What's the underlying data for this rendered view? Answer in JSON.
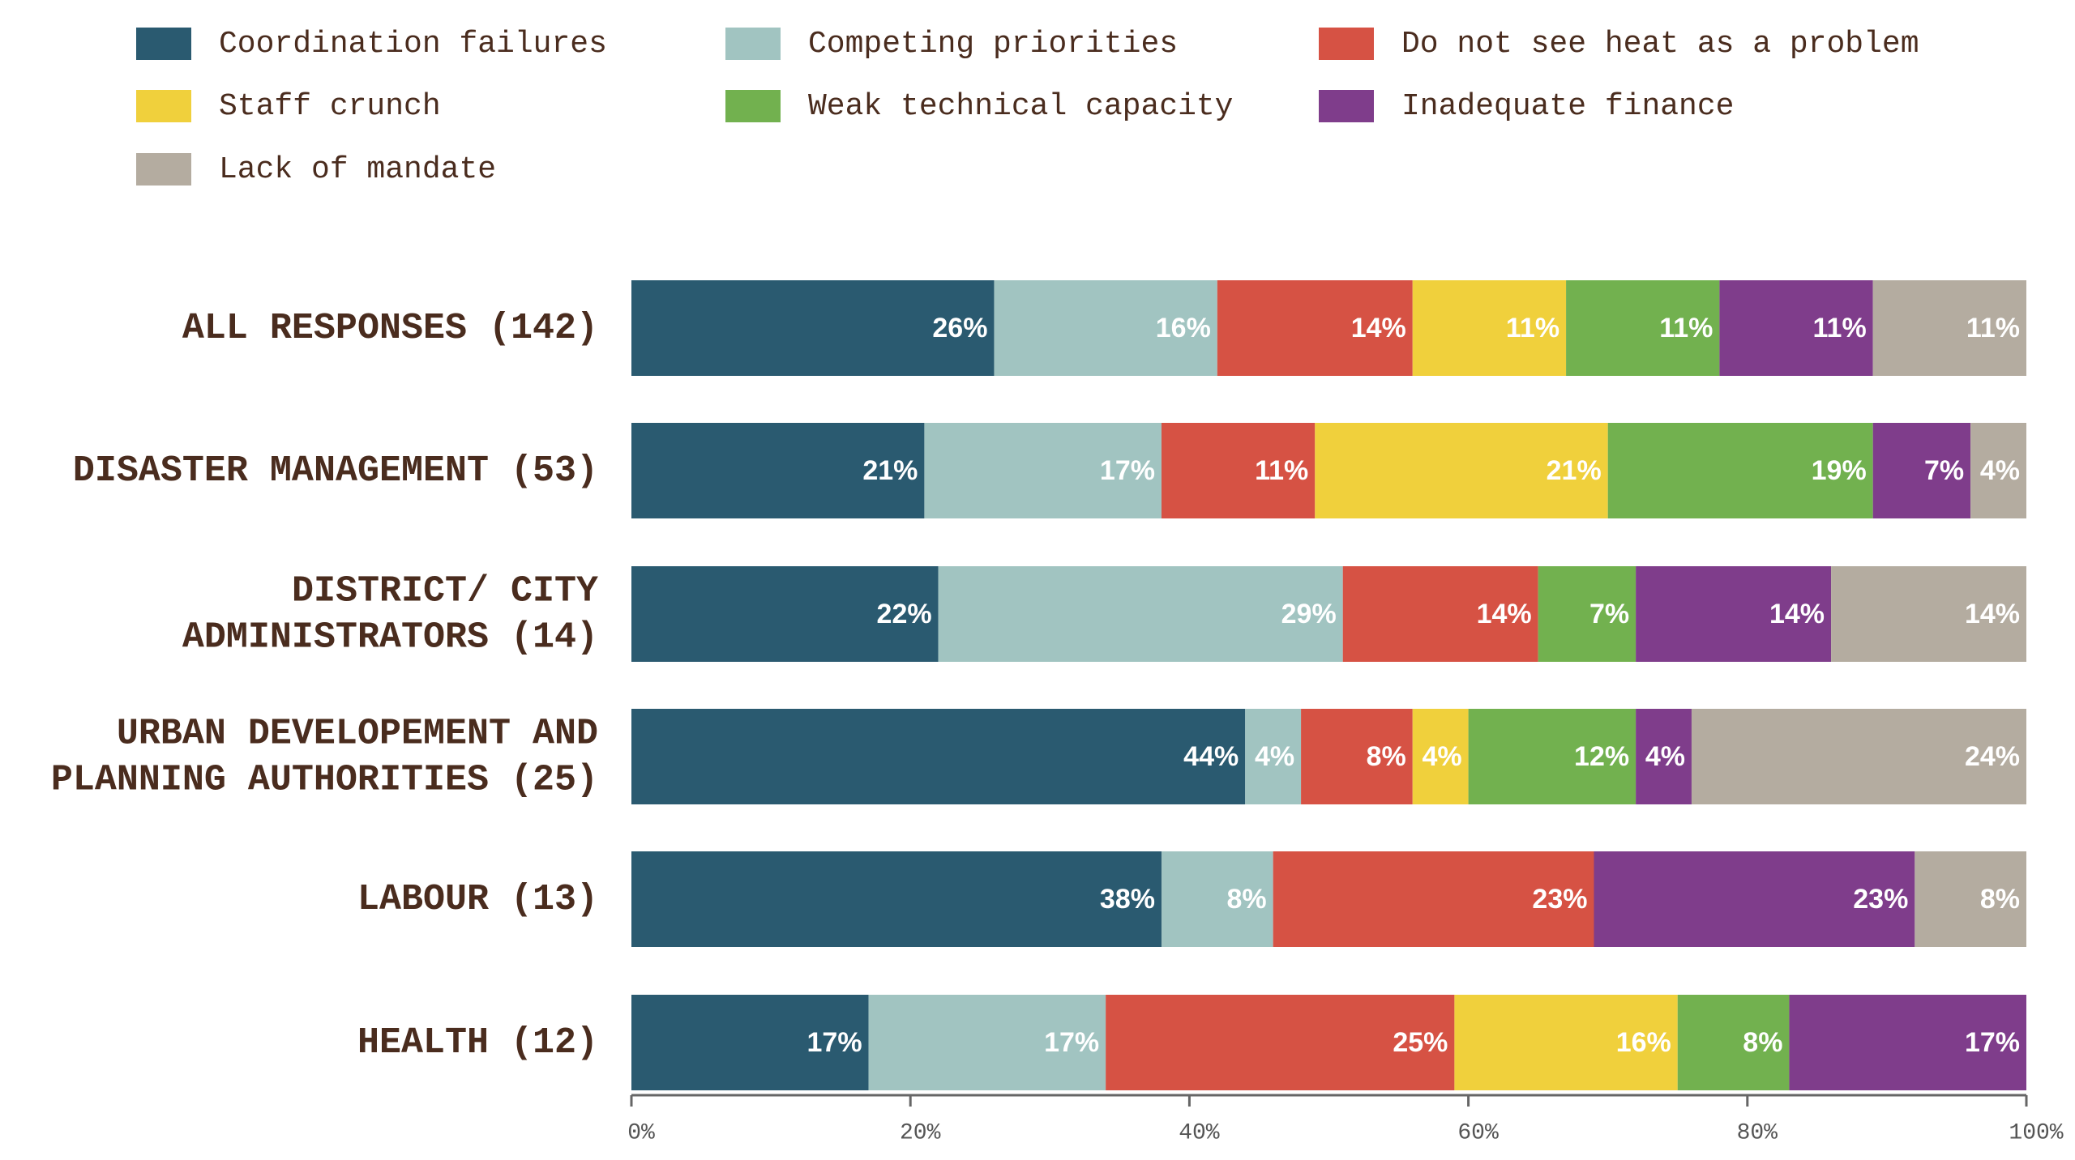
{
  "chart_data": {
    "type": "stacked-bar-horizontal",
    "categories": [
      [
        "ALL RESPONSES (142)"
      ],
      [
        "DISASTER MANAGEMENT (53)"
      ],
      [
        "DISTRICT/ CITY",
        "ADMINISTRATORS (14)"
      ],
      [
        "URBAN DEVELOPEMENT AND",
        "PLANNING AUTHORITIES (25)"
      ],
      [
        "LABOUR (13)"
      ],
      [
        "HEALTH (12)"
      ]
    ],
    "series": [
      {
        "name": "Coordination failures",
        "color": "#2a5a70",
        "values": [
          26,
          21,
          22,
          44,
          38,
          17
        ],
        "value_labels": [
          "26%",
          "21%",
          "22%",
          "44%",
          "38%",
          "17%"
        ]
      },
      {
        "name": "Competing priorities",
        "color": "#a1c4c1",
        "values": [
          16,
          17,
          29,
          4,
          8,
          17
        ],
        "value_labels": [
          "16%",
          "17%",
          "29%",
          "4%",
          "8%",
          "17%"
        ]
      },
      {
        "name": "Do not see heat as a problem",
        "color": "#d65244",
        "values": [
          14,
          11,
          14,
          8,
          23,
          25
        ],
        "value_labels": [
          "14%",
          "11%",
          "14%",
          "8%",
          "23%",
          "25%"
        ]
      },
      {
        "name": "Staff crunch",
        "color": "#f0d03c",
        "values": [
          11,
          21,
          null,
          4,
          null,
          16
        ],
        "value_labels": [
          "11%",
          "21%",
          null,
          "4%",
          null,
          "16%"
        ]
      },
      {
        "name": "Weak technical capacity",
        "color": "#72b14f",
        "values": [
          11,
          19,
          7,
          12,
          null,
          8
        ],
        "value_labels": [
          "11%",
          "19%",
          "7%",
          "12%",
          null,
          "8%"
        ]
      },
      {
        "name": "Inadequate finance",
        "color": "#7f3d8b",
        "values": [
          11,
          7,
          14,
          4,
          23,
          17
        ],
        "value_labels": [
          "11%",
          "7%",
          "14%",
          "4%",
          "23%",
          "17%"
        ]
      },
      {
        "name": "Lack of mandate",
        "color": "#b4aca0",
        "values": [
          11,
          4,
          14,
          24,
          8,
          null
        ],
        "value_labels": [
          "11%",
          "4%",
          "14%",
          "24%",
          "8%",
          null
        ]
      }
    ],
    "xlim": [
      0,
      100
    ],
    "xticks": [
      {
        "value": 0,
        "label": "0%"
      },
      {
        "value": 20,
        "label": "20%"
      },
      {
        "value": 40,
        "label": "40%"
      },
      {
        "value": 60,
        "label": "60%"
      },
      {
        "value": 80,
        "label": "80%"
      },
      {
        "value": 100,
        "label": "100%"
      }
    ]
  }
}
